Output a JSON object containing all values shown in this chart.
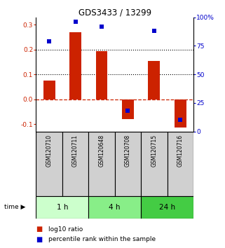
{
  "title": "GDS3433 / 13299",
  "categories": [
    "GSM120710",
    "GSM120711",
    "GSM120648",
    "GSM120708",
    "GSM120715",
    "GSM120716"
  ],
  "log10_ratio": [
    0.075,
    0.27,
    0.195,
    -0.08,
    0.155,
    -0.115
  ],
  "percentile_rank": [
    0.79,
    0.96,
    0.92,
    0.18,
    0.88,
    0.1
  ],
  "groups": [
    {
      "label": "1 h",
      "indices": [
        0,
        1
      ],
      "color": "#ccffcc"
    },
    {
      "label": "4 h",
      "indices": [
        2,
        3
      ],
      "color": "#88ee88"
    },
    {
      "label": "24 h",
      "indices": [
        4,
        5
      ],
      "color": "#44cc44"
    }
  ],
  "bar_color": "#cc2200",
  "dot_color": "#0000cc",
  "ylim_left": [
    -0.13,
    0.33
  ],
  "ylim_right": [
    0,
    1.0
  ],
  "yticks_left": [
    -0.1,
    0.0,
    0.1,
    0.2,
    0.3
  ],
  "yticks_right": [
    0.0,
    0.25,
    0.5,
    0.75,
    1.0
  ],
  "ytick_labels_right": [
    "0",
    "25",
    "50",
    "75",
    "100%"
  ],
  "hlines": [
    0.1,
    0.2
  ],
  "hline_zero_color": "#cc2200",
  "bar_width": 0.45,
  "dot_size": 18,
  "label_cell_color": "#d0d0d0"
}
